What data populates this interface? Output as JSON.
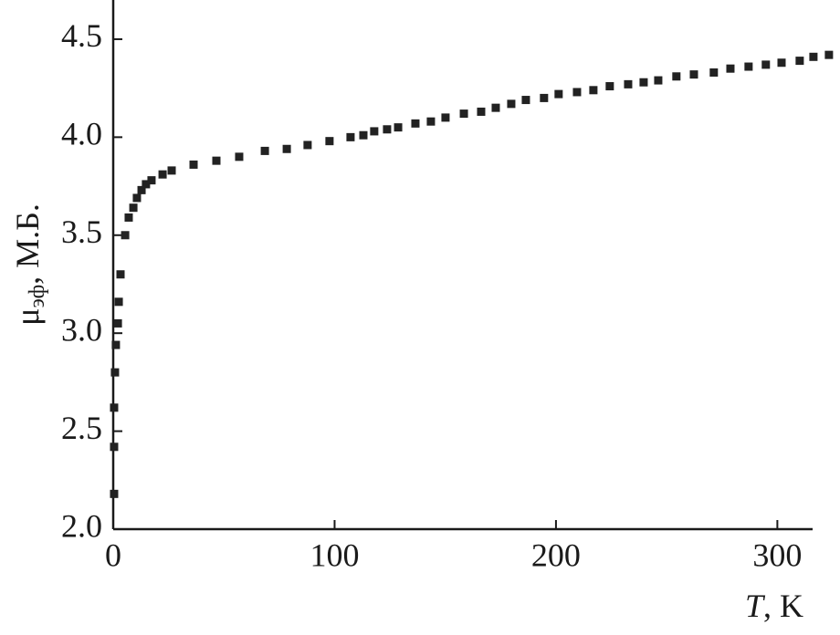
{
  "chart_data": {
    "type": "scatter",
    "x_label_var": "T",
    "x_label_unit": ", K",
    "y_label": "μ",
    "y_label_sub": "эф",
    "y_label_unit": ", М.Б.",
    "color": "#222222",
    "xlim": [
      0,
      325
    ],
    "ylim": [
      2.0,
      4.7
    ],
    "xticks": [
      0,
      100,
      200,
      300
    ],
    "yticks": [
      {
        "value": 2.0,
        "label": "2.0"
      },
      {
        "value": 2.5,
        "label": "2.5"
      },
      {
        "value": 3.0,
        "label": "3.0"
      },
      {
        "value": 3.5,
        "label": "3.5"
      },
      {
        "value": 4.0,
        "label": "4.0"
      },
      {
        "value": 4.5,
        "label": "4.5"
      }
    ],
    "x": [
      0.4,
      0.4,
      0.4,
      0.8,
      1.2,
      2.1,
      2.5,
      3.3,
      5.4,
      7.0,
      9.1,
      10.7,
      12.8,
      14.8,
      17.3,
      22.3,
      26.4,
      36.3,
      46.6,
      56.9,
      68.5,
      78.4,
      87.8,
      97.7,
      107.2,
      113.0,
      117.9,
      123.7,
      128.7,
      136.5,
      143.5,
      150.1,
      158.4,
      166.2,
      172.8,
      179.8,
      186.4,
      194.6,
      201.2,
      209.5,
      216.9,
      224.3,
      232.6,
      239.6,
      246.2,
      254.4,
      262.3,
      271.3,
      278.8,
      287.0,
      294.8,
      301.9,
      310.1,
      316.3,
      323.3
    ],
    "values": [
      2.18,
      2.42,
      2.62,
      2.8,
      2.94,
      3.05,
      3.16,
      3.3,
      3.5,
      3.59,
      3.64,
      3.69,
      3.73,
      3.76,
      3.78,
      3.81,
      3.83,
      3.86,
      3.88,
      3.9,
      3.93,
      3.94,
      3.96,
      3.98,
      4.0,
      4.01,
      4.03,
      4.04,
      4.05,
      4.07,
      4.08,
      4.1,
      4.12,
      4.13,
      4.15,
      4.17,
      4.19,
      4.2,
      4.22,
      4.23,
      4.24,
      4.26,
      4.27,
      4.28,
      4.29,
      4.31,
      4.32,
      4.33,
      4.35,
      4.36,
      4.37,
      4.38,
      4.39,
      4.41,
      4.42
    ]
  }
}
